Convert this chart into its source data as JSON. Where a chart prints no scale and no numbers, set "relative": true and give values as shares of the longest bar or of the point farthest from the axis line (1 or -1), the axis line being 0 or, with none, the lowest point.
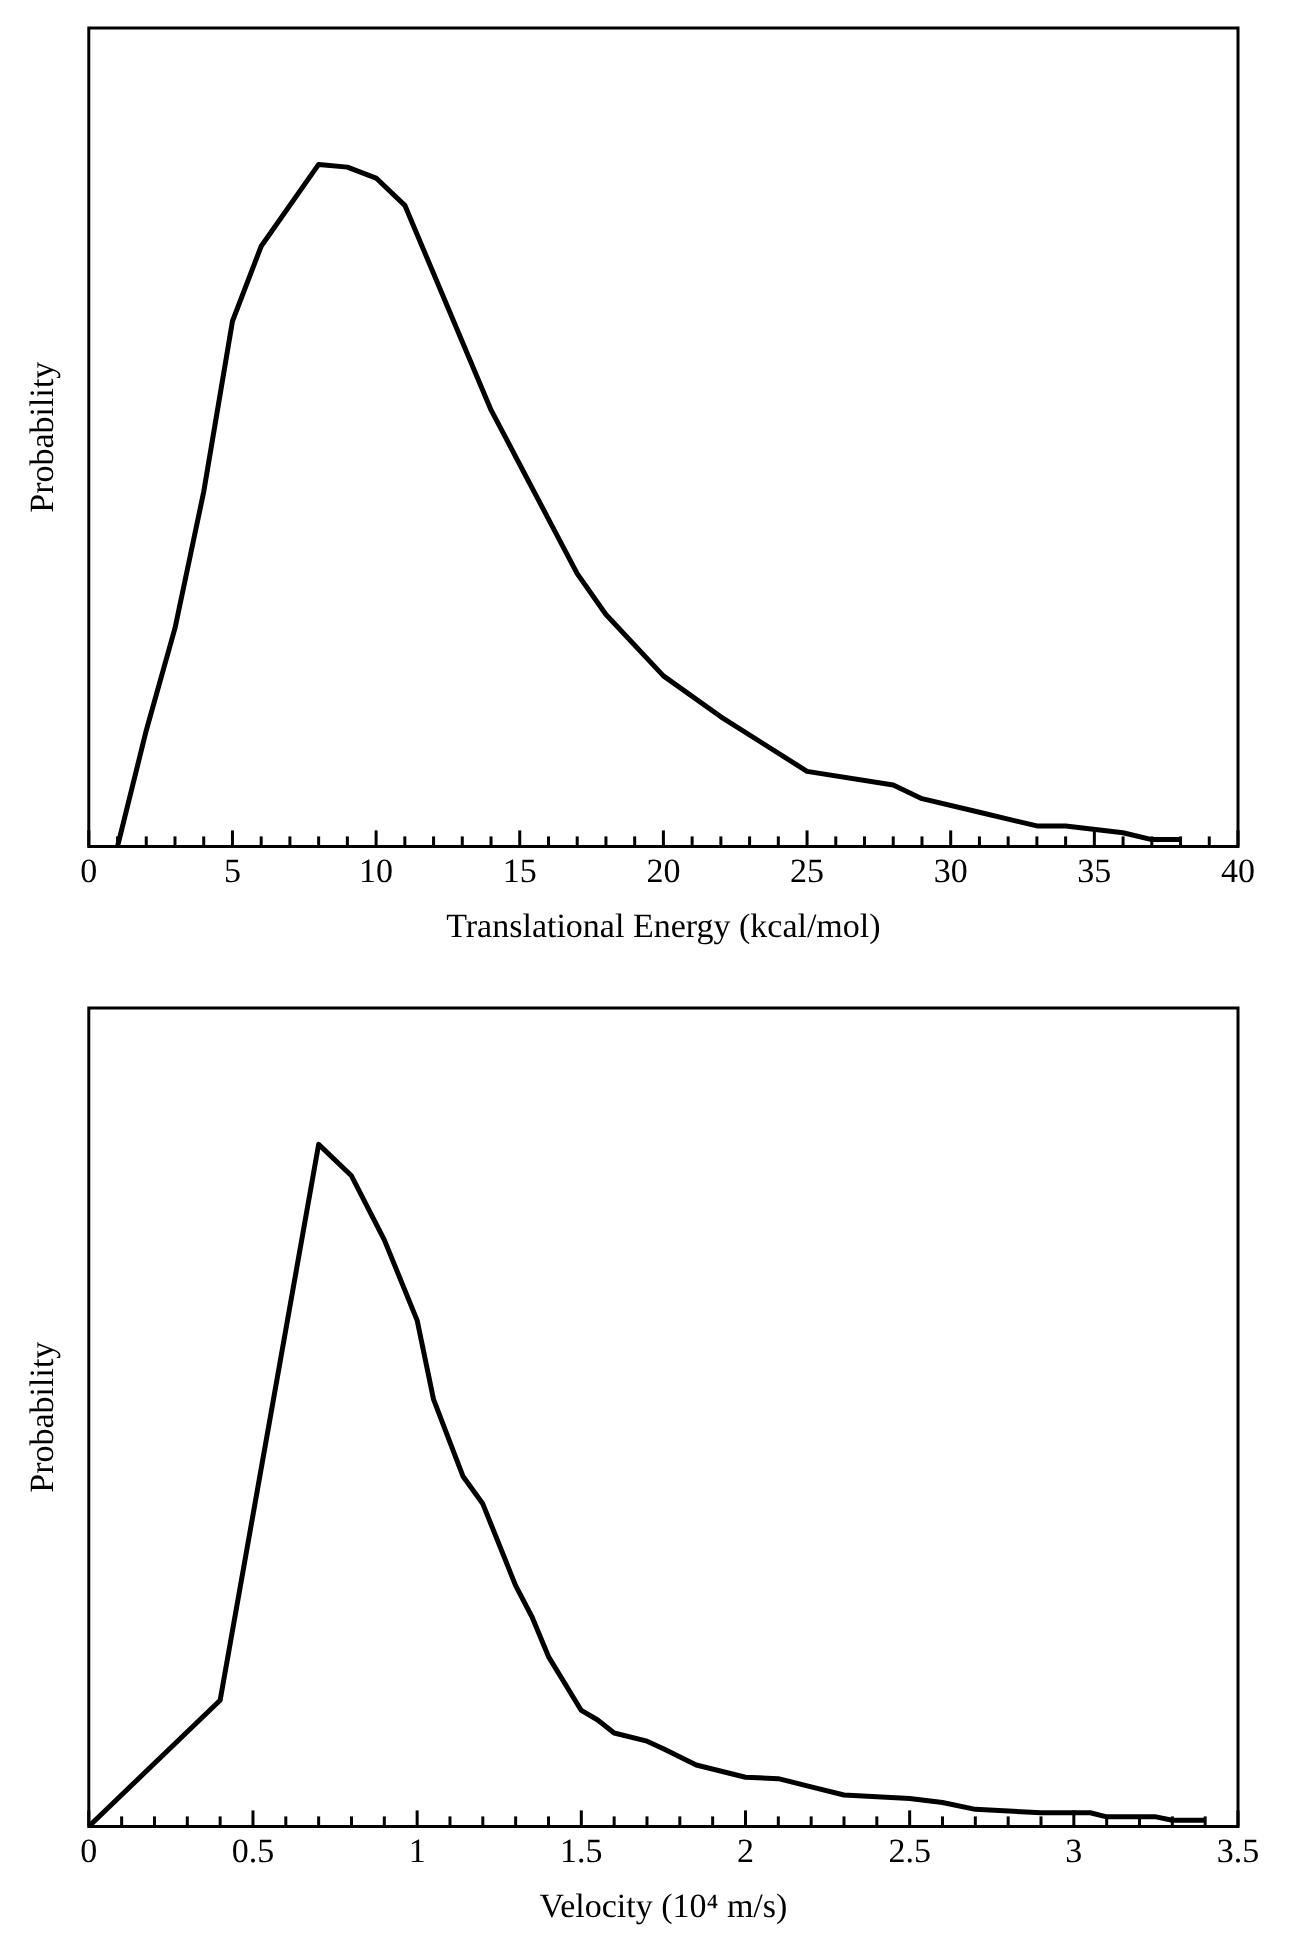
{
  "chart_data": [
    {
      "type": "line",
      "relative": true,
      "xlabel": "Translational Energy (kcal/mol)",
      "ylabel": "Probability",
      "xlim": [
        0,
        40
      ],
      "marker": "none",
      "line_style": "solid",
      "grid": false,
      "legend": false,
      "xticks": [
        0,
        {
          "value": 1,
          "label": null
        },
        {
          "value": 2,
          "label": null
        },
        {
          "value": 3,
          "label": null
        },
        {
          "value": 4,
          "label": null
        },
        5,
        {
          "value": 6,
          "label": null
        },
        {
          "value": 7,
          "label": null
        },
        {
          "value": 8,
          "label": null
        },
        {
          "value": 9,
          "label": null
        },
        10,
        {
          "value": 11,
          "label": null
        },
        {
          "value": 12,
          "label": null
        },
        {
          "value": 13,
          "label": null
        },
        {
          "value": 14,
          "label": null
        },
        15,
        {
          "value": 16,
          "label": null
        },
        {
          "value": 17,
          "label": null
        },
        {
          "value": 18,
          "label": null
        },
        {
          "value": 19,
          "label": null
        },
        20,
        {
          "value": 21,
          "label": null
        },
        {
          "value": 22,
          "label": null
        },
        {
          "value": 23,
          "label": null
        },
        {
          "value": 24,
          "label": null
        },
        25,
        {
          "value": 26,
          "label": null
        },
        {
          "value": 27,
          "label": null
        },
        {
          "value": 28,
          "label": null
        },
        {
          "value": 29,
          "label": null
        },
        30,
        {
          "value": 31,
          "label": null
        },
        {
          "value": 32,
          "label": null
        },
        {
          "value": 33,
          "label": null
        },
        {
          "value": 34,
          "label": null
        },
        35,
        {
          "value": 36,
          "label": null
        },
        {
          "value": 37,
          "label": null
        },
        {
          "value": 38,
          "label": null
        },
        {
          "value": 39,
          "label": null
        },
        40
      ],
      "series": [
        {
          "color": "#000000",
          "x": [
            1,
            2,
            3,
            4,
            5,
            6,
            8,
            9,
            10,
            11,
            12,
            13,
            14,
            15,
            16,
            17,
            18,
            20,
            22,
            25,
            28,
            29,
            31,
            32,
            33,
            34,
            36,
            37,
            38
          ],
          "values": [
            0,
            0.17,
            0.32,
            0.52,
            0.77,
            0.88,
            1,
            0.996,
            0.98,
            0.94,
            0.84,
            0.74,
            0.64,
            0.56,
            0.48,
            0.4,
            0.34,
            0.25,
            0.19,
            0.11,
            0.09,
            0.07,
            0.05,
            0.04,
            0.03,
            0.03,
            0.02,
            0.01,
            0.01
          ]
        }
      ]
    },
    {
      "type": "line",
      "relative": true,
      "xlabel": "Velocity (10⁴ m/s)",
      "ylabel": "Probability",
      "xlim": [
        0,
        3.5
      ],
      "marker": "none",
      "line_style": "solid",
      "grid": false,
      "legend": false,
      "xticks": [
        0,
        {
          "value": 0.1,
          "label": null
        },
        {
          "value": 0.2,
          "label": null
        },
        {
          "value": 0.3,
          "label": null
        },
        {
          "value": 0.4,
          "label": null
        },
        0.5,
        {
          "value": 0.6,
          "label": null
        },
        {
          "value": 0.7,
          "label": null
        },
        {
          "value": 0.8,
          "label": null
        },
        {
          "value": 0.9,
          "label": null
        },
        1,
        {
          "value": 1.1,
          "label": null
        },
        {
          "value": 1.2,
          "label": null
        },
        {
          "value": 1.3,
          "label": null
        },
        {
          "value": 1.4,
          "label": null
        },
        1.5,
        {
          "value": 1.6,
          "label": null
        },
        {
          "value": 1.7,
          "label": null
        },
        {
          "value": 1.8,
          "label": null
        },
        {
          "value": 1.9,
          "label": null
        },
        2,
        {
          "value": 2.1,
          "label": null
        },
        {
          "value": 2.2,
          "label": null
        },
        {
          "value": 2.3,
          "label": null
        },
        {
          "value": 2.4,
          "label": null
        },
        2.5,
        {
          "value": 2.6,
          "label": null
        },
        {
          "value": 2.7,
          "label": null
        },
        {
          "value": 2.8,
          "label": null
        },
        {
          "value": 2.9,
          "label": null
        },
        3,
        {
          "value": 3.1,
          "label": null
        },
        {
          "value": 3.2,
          "label": null
        },
        {
          "value": 3.3,
          "label": null
        },
        {
          "value": 3.4,
          "label": null
        },
        3.5
      ],
      "series": [
        {
          "color": "#000000",
          "x": [
            0,
            0.4,
            0.7,
            0.8,
            0.9,
            1.0,
            1.05,
            1.14,
            1.2,
            1.3,
            1.35,
            1.4,
            1.5,
            1.55,
            1.6,
            1.7,
            1.75,
            1.85,
            2.0,
            2.1,
            2.2,
            2.3,
            2.5,
            2.6,
            2.7,
            2.9,
            3.05,
            3.1,
            3.25,
            3.3,
            3.4
          ],
          "values": [
            0,
            0.185,
            1,
            0.954,
            0.86,
            0.742,
            0.626,
            0.513,
            0.473,
            0.353,
            0.307,
            0.249,
            0.17,
            0.156,
            0.137,
            0.125,
            0.114,
            0.09,
            0.072,
            0.07,
            0.058,
            0.046,
            0.041,
            0.035,
            0.025,
            0.02,
            0.02,
            0.014,
            0.014,
            0.009,
            0.009
          ]
        }
      ]
    }
  ]
}
